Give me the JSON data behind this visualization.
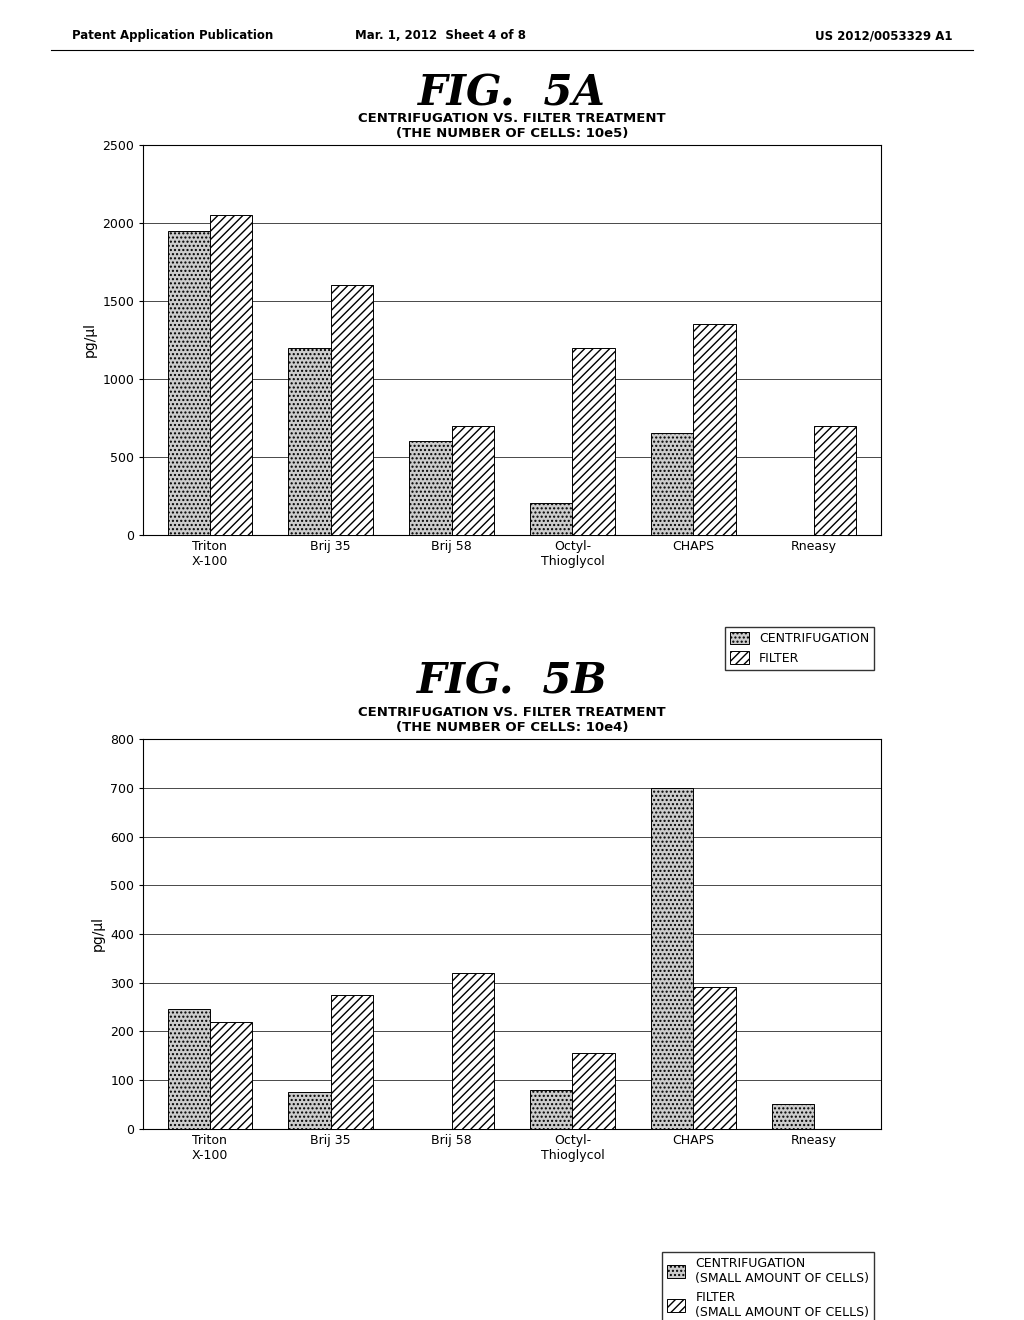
{
  "header_left": "Patent Application Publication",
  "header_center": "Mar. 1, 2012  Sheet 4 of 8",
  "header_right": "US 2012/0053329 A1",
  "fig5a": {
    "title_fig": "FIG.  5A",
    "chart_title": "CENTRIFUGATION VS. FILTER TREATMENT\n(THE NUMBER OF CELLS: 10e5)",
    "ylabel": "pg/μl",
    "categories": [
      "Triton\nX-100",
      "Brij 35",
      "Brij 58",
      "Octyl-\nThioglycol",
      "CHAPS",
      "Rneasy"
    ],
    "centrifugation": [
      1950,
      1200,
      600,
      200,
      650,
      0
    ],
    "filter": [
      2050,
      1600,
      700,
      1200,
      1350,
      700
    ],
    "ylim": [
      0,
      2500
    ],
    "yticks": [
      0,
      500,
      1000,
      1500,
      2000,
      2500
    ],
    "legend1": "CENTRIFUGATION",
    "legend2": "FILTER"
  },
  "fig5b": {
    "title_fig": "FIG.  5B",
    "chart_title": "CENTRIFUGATION VS. FILTER TREATMENT\n(THE NUMBER OF CELLS: 10e4)",
    "ylabel": "pg/μl",
    "categories": [
      "Triton\nX-100",
      "Brij 35",
      "Brij 58",
      "Octyl-\nThioglycol",
      "CHAPS",
      "Rneasy"
    ],
    "centrifugation": [
      245,
      75,
      0,
      80,
      700,
      50
    ],
    "filter": [
      220,
      275,
      320,
      155,
      290,
      0
    ],
    "ylim": [
      0,
      800
    ],
    "yticks": [
      0,
      100,
      200,
      300,
      400,
      500,
      600,
      700,
      800
    ],
    "legend1": "CENTRIFUGATION\n(SMALL AMOUNT OF CELLS)",
    "legend2": "FILTER\n(SMALL AMOUNT OF CELLS)"
  },
  "bg_color": "#ffffff",
  "font_color": "#000000",
  "bar_width": 0.35
}
